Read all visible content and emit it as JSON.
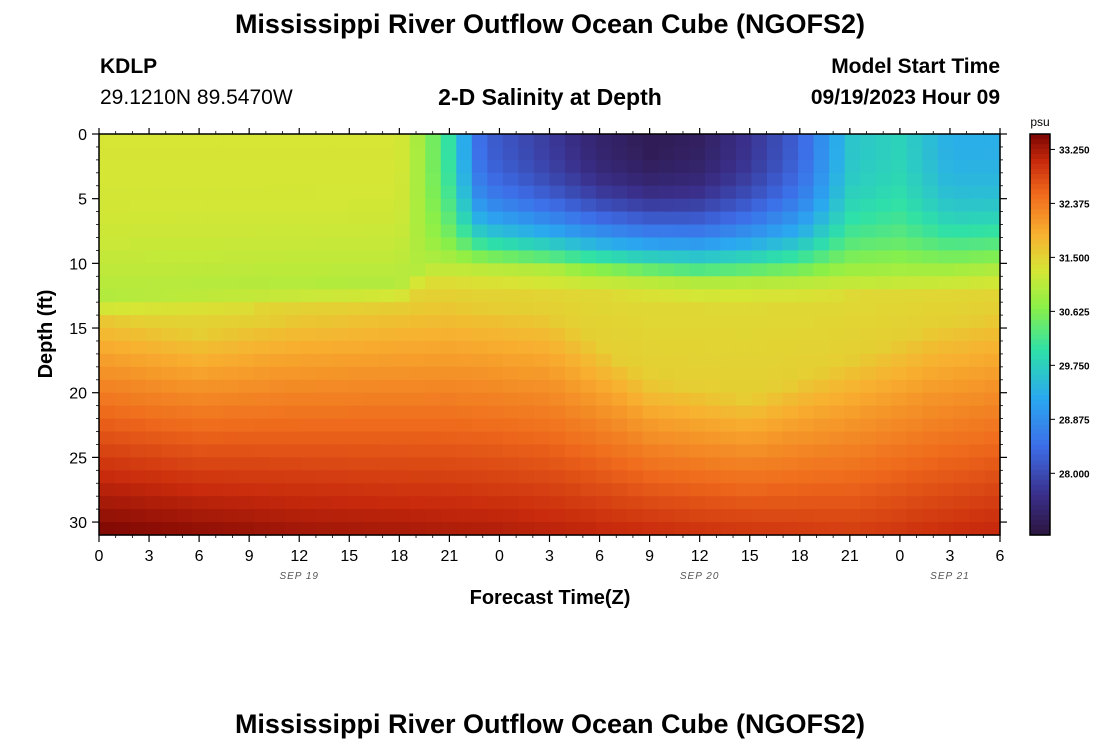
{
  "header": {
    "title": "Mississippi River Outflow Ocean Cube (NGOFS2)",
    "station_id": "KDLP",
    "coords": "29.1210N  89.5470W",
    "subtitle": "2-D Salinity at Depth",
    "model_start_label": "Model Start Time",
    "model_start_value": "09/19/2023 Hour 09"
  },
  "footer": {
    "title_repeat": "Mississippi River Outflow Ocean Cube (NGOFS2)"
  },
  "chart_data": {
    "type": "heatmap",
    "title": "2-D Salinity at Depth",
    "xlabel": "Forecast Time(Z)",
    "ylabel": "Depth (ft)",
    "x_ticks": [
      "0",
      "3",
      "6",
      "9",
      "12",
      "15",
      "18",
      "21",
      "0",
      "3",
      "6",
      "9",
      "12",
      "15",
      "18",
      "21",
      "0",
      "3",
      "6"
    ],
    "x_hours_range": [
      0,
      54
    ],
    "date_labels": [
      {
        "label": "SEP 19",
        "hour": 12
      },
      {
        "label": "SEP 20",
        "hour": 36
      },
      {
        "label": "SEP 21",
        "hour": 51
      }
    ],
    "y_ticks": [
      0,
      5,
      10,
      15,
      20,
      25,
      30
    ],
    "ylim": [
      0,
      31
    ],
    "y_inverted": true,
    "colorbar": {
      "unit": "psu",
      "vmin": 27.0,
      "vmax": 33.5,
      "ticks": [
        "33.250",
        "32.375",
        "31.500",
        "30.625",
        "29.750",
        "28.875",
        "28.000"
      ],
      "tick_values": [
        33.25,
        32.375,
        31.5,
        30.625,
        29.75,
        28.875,
        28.0
      ]
    },
    "field": {
      "surface_salinity_by_hour": [
        [
          0,
          31.3
        ],
        [
          18,
          31.3
        ],
        [
          19.5,
          30.8
        ],
        [
          21,
          30.0
        ],
        [
          23,
          28.3
        ],
        [
          27,
          27.8
        ],
        [
          30,
          27.4
        ],
        [
          33,
          27.2
        ],
        [
          36,
          27.3
        ],
        [
          39,
          27.7
        ],
        [
          42,
          28.3
        ],
        [
          45,
          29.6
        ],
        [
          48,
          29.8
        ],
        [
          51,
          29.3
        ],
        [
          54,
          29.3
        ]
      ],
      "fresh_layer_depth_by_hour": [
        [
          0,
          12.5
        ],
        [
          18,
          11.5
        ],
        [
          19.5,
          10.0
        ],
        [
          21,
          10.0
        ],
        [
          27,
          10.5
        ],
        [
          29,
          10.8
        ],
        [
          36,
          11.5
        ],
        [
          42,
          11.3
        ],
        [
          45,
          11.0
        ],
        [
          51,
          10.8
        ],
        [
          54,
          10.5
        ]
      ],
      "mixed_layer_depth_by_hour": [
        [
          0,
          14.0
        ],
        [
          6,
          15.5
        ],
        [
          12,
          14.0
        ],
        [
          21,
          13.0
        ],
        [
          27,
          14.0
        ],
        [
          33,
          19.0
        ],
        [
          39,
          20.5
        ],
        [
          45,
          17.5
        ],
        [
          50,
          15.0
        ],
        [
          54,
          14.0
        ]
      ],
      "mid_salinity": 31.4,
      "bottom_salinity_by_hour": [
        [
          0,
          33.5
        ],
        [
          12,
          33.3
        ],
        [
          24,
          33.2
        ],
        [
          36,
          33.0
        ],
        [
          45,
          32.9
        ],
        [
          54,
          33.1
        ]
      ]
    }
  }
}
